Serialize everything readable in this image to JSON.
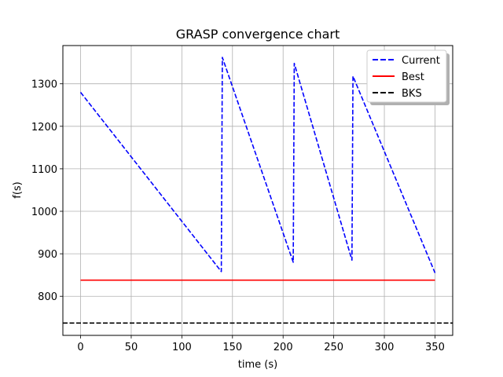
{
  "chart_data": {
    "type": "line",
    "title": "GRASP convergence chart",
    "xlabel": "time (s)",
    "ylabel": "f(s)",
    "xlim": [
      -17.5,
      367.5
    ],
    "ylim": [
      708,
      1390
    ],
    "xticks": [
      0,
      50,
      100,
      150,
      200,
      250,
      300,
      350
    ],
    "yticks": [
      800,
      900,
      1000,
      1100,
      1200,
      1300
    ],
    "grid": true,
    "legend_position": "top-right",
    "series": [
      {
        "name": "Current",
        "color": "#0000ff",
        "style": "dashed",
        "x": [
          0,
          139,
          139,
          140,
          210,
          210,
          211,
          268,
          268,
          269,
          350
        ],
        "y": [
          1280,
          858,
          858,
          1362,
          880,
          880,
          1348,
          885,
          885,
          1318,
          855
        ]
      },
      {
        "name": "Best",
        "color": "#ff0000",
        "style": "solid",
        "x": [
          0,
          350
        ],
        "y": [
          838,
          838
        ]
      },
      {
        "name": "BKS",
        "color": "#000000",
        "style": "dashed",
        "x": [
          -17.5,
          367.5
        ],
        "y": [
          737,
          737
        ]
      }
    ]
  }
}
